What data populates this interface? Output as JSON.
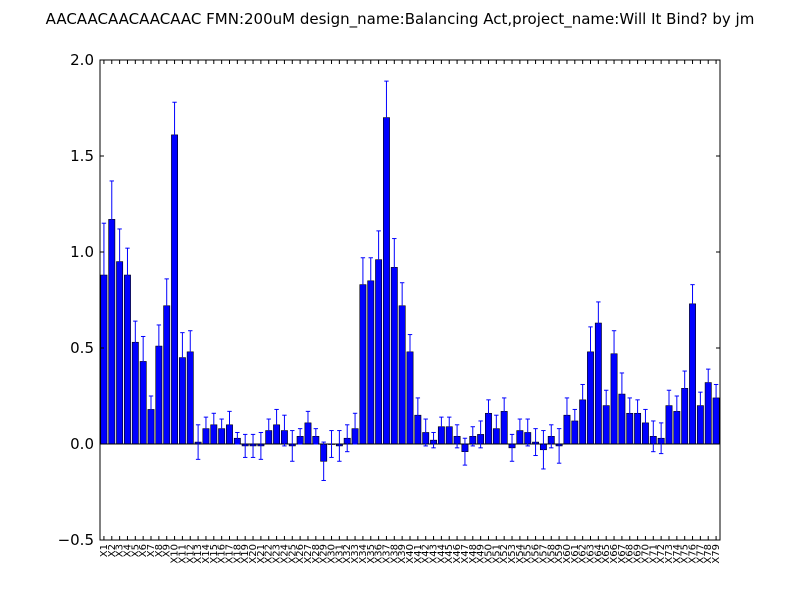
{
  "chart_data": {
    "type": "bar",
    "title": "AACAACAACAACAAC  FMN:200uM  design_name:Balancing Act,project_name:Will It Bind? by jm",
    "xlabel": "",
    "ylabel": "",
    "ylim": [
      -0.5,
      2.0
    ],
    "yticks": [
      "-0.5",
      "0.0",
      "0.5",
      "1.0",
      "1.5",
      "2.0"
    ],
    "grid": false,
    "legend": "none",
    "bar_color": "#0000ff",
    "error_color": "#0000ff",
    "categories": [
      "X1",
      "X2",
      "X3",
      "X4",
      "X5",
      "X6",
      "X7",
      "X8",
      "X9",
      "X10",
      "X11",
      "X12",
      "X13",
      "X14",
      "X15",
      "X16",
      "X17",
      "X18",
      "X19",
      "X20",
      "X21",
      "X22",
      "X23",
      "X24",
      "X25",
      "X26",
      "X27",
      "X28",
      "X29",
      "X30",
      "X31",
      "X32",
      "X33",
      "X34",
      "X35",
      "X36",
      "X37",
      "X38",
      "X39",
      "X40",
      "X41",
      "X42",
      "X43",
      "X44",
      "X45",
      "X46",
      "X47",
      "X48",
      "X49",
      "X50",
      "X51",
      "X52",
      "X53",
      "X54",
      "X55",
      "X56",
      "X57",
      "X58",
      "X59",
      "X60",
      "X61",
      "X62",
      "X63",
      "X64",
      "X65",
      "X66",
      "X67",
      "X68",
      "X69",
      "X70",
      "X71",
      "X72",
      "X73",
      "X74",
      "X75",
      "X76",
      "X77",
      "X78",
      "X79"
    ],
    "values": [
      0.88,
      1.17,
      0.95,
      0.88,
      0.53,
      0.43,
      0.18,
      0.51,
      0.72,
      1.61,
      0.45,
      0.48,
      0.01,
      0.08,
      0.1,
      0.08,
      0.1,
      0.03,
      -0.01,
      -0.01,
      -0.01,
      0.07,
      0.1,
      0.07,
      -0.01,
      0.04,
      0.11,
      0.04,
      -0.09,
      0.0,
      -0.01,
      0.03,
      0.08,
      0.83,
      0.85,
      0.96,
      1.7,
      0.92,
      0.72,
      0.48,
      0.15,
      0.06,
      0.02,
      0.09,
      0.09,
      0.04,
      -0.04,
      0.04,
      0.05,
      0.16,
      0.08,
      0.17,
      -0.02,
      0.07,
      0.06,
      0.01,
      -0.03,
      0.04,
      -0.01,
      0.15,
      0.12,
      0.23,
      0.48,
      0.63,
      0.2,
      0.47,
      0.26,
      0.16,
      0.16,
      0.11,
      0.04,
      0.03,
      0.2,
      0.17,
      0.29,
      0.73,
      0.2,
      0.32,
      0.24
    ],
    "errors": [
      0.27,
      0.2,
      0.17,
      0.14,
      0.11,
      0.13,
      0.07,
      0.11,
      0.14,
      0.17,
      0.13,
      0.11,
      0.09,
      0.06,
      0.06,
      0.05,
      0.07,
      0.03,
      0.06,
      0.06,
      0.07,
      0.06,
      0.08,
      0.08,
      0.08,
      0.04,
      0.06,
      0.04,
      0.1,
      0.07,
      0.08,
      0.07,
      0.08,
      0.14,
      0.12,
      0.15,
      0.19,
      0.15,
      0.12,
      0.09,
      0.09,
      0.07,
      0.04,
      0.05,
      0.05,
      0.06,
      0.07,
      0.05,
      0.07,
      0.07,
      0.07,
      0.07,
      0.07,
      0.06,
      0.07,
      0.07,
      0.1,
      0.06,
      0.09,
      0.09,
      0.06,
      0.08,
      0.13,
      0.11,
      0.08,
      0.12,
      0.11,
      0.08,
      0.07,
      0.07,
      0.08,
      0.08,
      0.08,
      0.08,
      0.09,
      0.1,
      0.07,
      0.07,
      0.07
    ]
  }
}
